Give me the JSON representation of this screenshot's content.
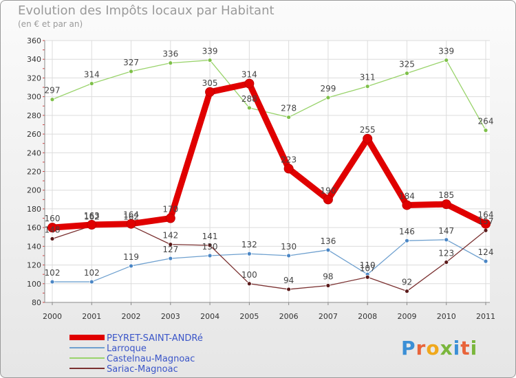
{
  "chart_data": {
    "type": "line",
    "title": "Evolution des Impôts locaux par Habitant",
    "subtitle": "(en € et par an)",
    "x": [
      "2000",
      "2001",
      "2002",
      "2003",
      "2004",
      "2005",
      "2006",
      "2007",
      "2008",
      "2009",
      "2010",
      "2011"
    ],
    "ylim": [
      80,
      360
    ],
    "yticks": [
      80,
      100,
      120,
      140,
      160,
      180,
      200,
      220,
      240,
      260,
      280,
      300,
      320,
      340,
      360
    ],
    "series": [
      {
        "name": "PEYRET-SAINT-ANDRé",
        "color": "#e00000",
        "point_color": "#e00000",
        "width": "thick",
        "values": [
          160,
          163,
          164,
          170,
          305,
          314,
          223,
          190,
          255,
          184,
          185,
          164
        ],
        "labels": [
          "160",
          "163",
          "164",
          "170",
          "305",
          "314",
          "223",
          "190",
          "255",
          "184",
          "185",
          "164"
        ]
      },
      {
        "name": "Larroque",
        "color": "#6ea0cf",
        "point_color": "#4a86c5",
        "width": "thin",
        "values": [
          102,
          102,
          119,
          127,
          130,
          132,
          130,
          136,
          110,
          146,
          147,
          124
        ],
        "labels": [
          "102",
          "102",
          "119",
          "127",
          "130",
          "132",
          "130",
          "136",
          "110",
          "146",
          "147",
          "124"
        ]
      },
      {
        "name": "Castelnau-Magnoac",
        "color": "#99d36b",
        "point_color": "#7fc04a",
        "width": "thin",
        "values": [
          297,
          314,
          327,
          336,
          339,
          288,
          278,
          299,
          311,
          325,
          339,
          264
        ],
        "labels": [
          "297",
          "314",
          "327",
          "336",
          "339",
          "288",
          "278",
          "299",
          "311",
          "325",
          "339",
          "264"
        ]
      },
      {
        "name": "Sariac-Magnoac",
        "color": "#7a3030",
        "point_color": "#5a1a1a",
        "width": "thin",
        "values": [
          148,
          162,
          162,
          142,
          141,
          100,
          94,
          98,
          107,
          92,
          123,
          157
        ],
        "labels": [
          "148",
          "162",
          "162",
          "142",
          "141",
          "100",
          "94",
          "98",
          "107",
          "92",
          "123",
          "157"
        ]
      }
    ]
  },
  "logo": {
    "letters": [
      "P",
      "r",
      "o",
      "x",
      "i",
      "t",
      "i"
    ]
  }
}
